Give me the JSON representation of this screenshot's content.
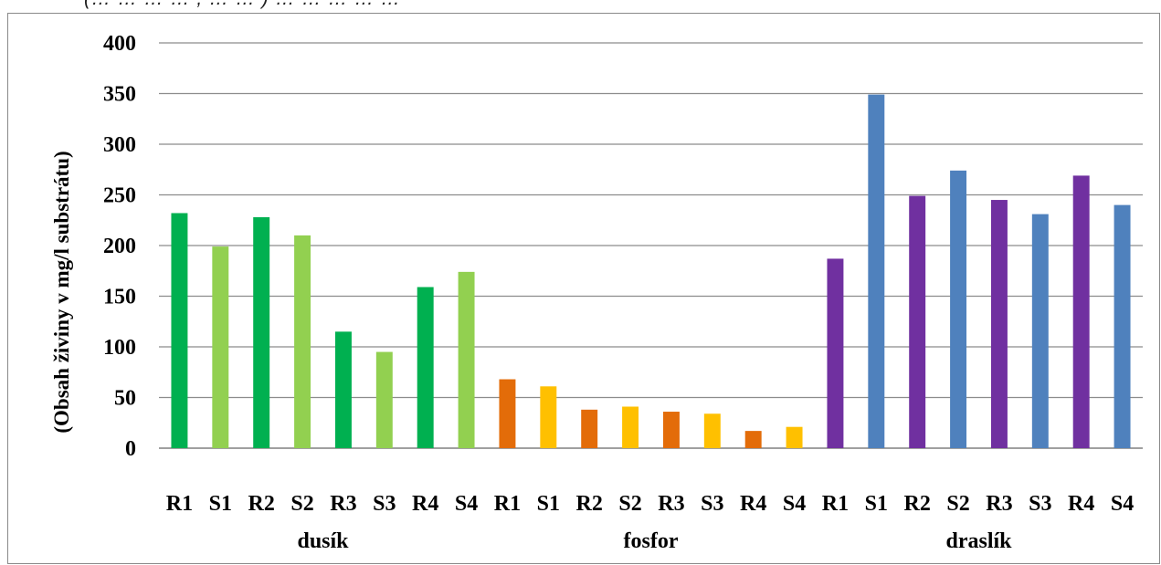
{
  "caption": "(… … … … , … … ) … … … … …",
  "chart_data": {
    "type": "bar",
    "title": "",
    "ylabel": "(Obsah živiny v mg/l substrátu)",
    "xlabel": "",
    "ylim": [
      0,
      400
    ],
    "yticks": [
      0,
      50,
      100,
      150,
      200,
      250,
      300,
      350,
      400
    ],
    "grid": true,
    "legend": "none",
    "groups": [
      {
        "name": "dusík",
        "colors": {
          "R": "#00b050",
          "S": "#92d050"
        },
        "categories": [
          "R1",
          "S1",
          "R2",
          "S2",
          "R3",
          "S3",
          "R4",
          "S4"
        ],
        "values": [
          232,
          199,
          228,
          210,
          115,
          95,
          159,
          174
        ]
      },
      {
        "name": "fosfor",
        "colors": {
          "R": "#e36c09",
          "S": "#ffc000"
        },
        "categories": [
          "R1",
          "S1",
          "R2",
          "S2",
          "R3",
          "S3",
          "R4",
          "S4"
        ],
        "values": [
          68,
          61,
          38,
          41,
          36,
          34,
          17,
          21
        ]
      },
      {
        "name": "draslík",
        "colors": {
          "R": "#7030a0",
          "S": "#4f81bd"
        },
        "categories": [
          "R1",
          "S1",
          "R2",
          "S2",
          "R3",
          "S3",
          "R4",
          "S4"
        ],
        "values": [
          187,
          349,
          249,
          274,
          245,
          231,
          269,
          240
        ]
      }
    ]
  }
}
